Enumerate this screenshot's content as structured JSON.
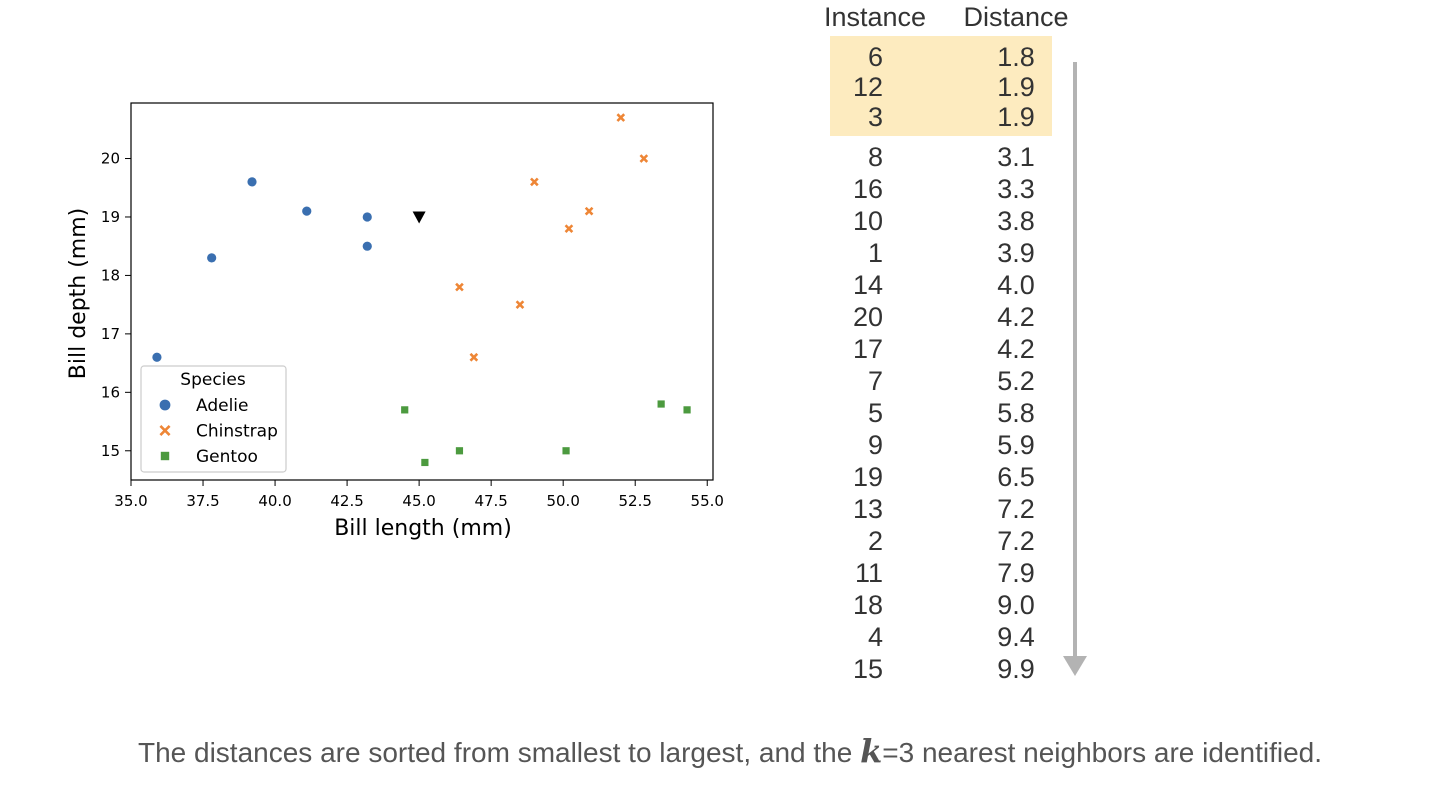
{
  "chart_data": {
    "type": "scatter",
    "xlabel": "Bill length (mm)",
    "ylabel": "Bill depth (mm)",
    "xlim": [
      35.0,
      55.2
    ],
    "ylim": [
      14.5,
      20.95
    ],
    "x_ticks": [
      "35.0",
      "37.5",
      "40.0",
      "42.5",
      "45.0",
      "47.5",
      "50.0",
      "52.5",
      "55.0"
    ],
    "y_ticks": [
      "15",
      "16",
      "17",
      "18",
      "19",
      "20"
    ],
    "grid": false,
    "legend": {
      "title": "Species",
      "placement": "lower-left",
      "entries": [
        "Adelie",
        "Chinstrap",
        "Gentoo"
      ]
    },
    "series": [
      {
        "name": "Adelie",
        "marker": "circle",
        "color": "#3a6fb0",
        "points": [
          [
            35.9,
            16.6
          ],
          [
            37.8,
            18.3
          ],
          [
            39.2,
            19.6
          ],
          [
            41.1,
            19.1
          ],
          [
            43.2,
            19.0
          ],
          [
            43.2,
            18.5
          ]
        ]
      },
      {
        "name": "Chinstrap",
        "marker": "x",
        "color": "#ee8636",
        "points": [
          [
            46.4,
            17.8
          ],
          [
            46.9,
            16.6
          ],
          [
            48.5,
            17.5
          ],
          [
            49.0,
            19.6
          ],
          [
            50.2,
            18.8
          ],
          [
            50.9,
            19.1
          ],
          [
            52.0,
            20.7
          ],
          [
            52.8,
            20.0
          ]
        ]
      },
      {
        "name": "Gentoo",
        "marker": "square",
        "color": "#4c9a3f",
        "points": [
          [
            44.5,
            15.7
          ],
          [
            45.2,
            14.8
          ],
          [
            46.4,
            15.0
          ],
          [
            50.1,
            15.0
          ],
          [
            53.4,
            15.8
          ],
          [
            54.3,
            15.7
          ]
        ]
      }
    ],
    "query_point": {
      "x": 45.0,
      "y": 19.0,
      "marker": "triangle-down",
      "color": "#000000"
    }
  },
  "table": {
    "headers": [
      "Instance",
      "Distance"
    ],
    "highlight_count": 3,
    "highlight_color": "#fdebbf",
    "arrow_color": "#b3b3b3",
    "rows": [
      [
        "6",
        "1.8"
      ],
      [
        "12",
        "1.9"
      ],
      [
        "3",
        "1.9"
      ],
      [
        "8",
        "3.1"
      ],
      [
        "16",
        "3.3"
      ],
      [
        "10",
        "3.8"
      ],
      [
        "1",
        "3.9"
      ],
      [
        "14",
        "4.0"
      ],
      [
        "20",
        "4.2"
      ],
      [
        "17",
        "4.2"
      ],
      [
        "7",
        "5.2"
      ],
      [
        "5",
        "5.8"
      ],
      [
        "9",
        "5.9"
      ],
      [
        "19",
        "6.5"
      ],
      [
        "13",
        "7.2"
      ],
      [
        "2",
        "7.2"
      ],
      [
        "11",
        "7.9"
      ],
      [
        "18",
        "9.0"
      ],
      [
        "4",
        "9.4"
      ],
      [
        "15",
        "9.9"
      ]
    ]
  },
  "caption": {
    "before": "The distances are sorted from smallest to largest, and the ",
    "k": "k",
    "after": "=3 nearest neighbors are identified."
  }
}
